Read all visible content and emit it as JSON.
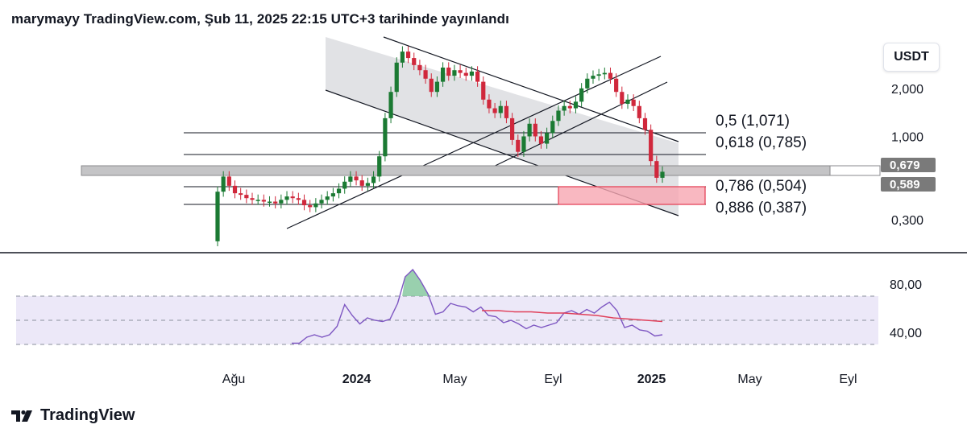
{
  "header": {
    "publisher": "marymayy",
    "site": "TradingView.com",
    "published": "Şub 11, 2025 22:15 UTC+3 tarihinde yayınlandı"
  },
  "unit_label": "USDT",
  "brand": {
    "name": "TradingView",
    "logo_icon": "tradingview-logo-icon"
  },
  "colors": {
    "up": "#1b7a33",
    "down": "#d0283c",
    "channel_fill": "#dcdde0",
    "zone_fill": "#f7a6b2",
    "zone_border": "#e5455a",
    "rsi_band": "#ece8f8",
    "rsi_line": "#7e57c2",
    "rsi_ma": "#e0405a",
    "price_tag": "#7a7a7a"
  },
  "chart_data": [
    {
      "type": "candlestick",
      "title": "",
      "scale": "log",
      "y_tick_labels": [
        "2,000",
        "1,000",
        "0,300"
      ],
      "y_ticks": [
        2.0,
        1.0,
        0.3
      ],
      "ylim": [
        0.2,
        4.5
      ],
      "x_tick_labels": [
        "Ağu",
        "2024",
        "May",
        "Eyl",
        "2025",
        "May",
        "Eyl"
      ],
      "x_ticks": [
        "2023-08",
        "2024-01",
        "2024-05",
        "2024-09",
        "2025-01",
        "2025-05",
        "2025-09"
      ],
      "xlim": [
        "2023-05",
        "2025-11"
      ],
      "interval": "weekly",
      "approx_closes": [
        0.45,
        0.56,
        0.49,
        0.44,
        0.43,
        0.41,
        0.4,
        0.4,
        0.39,
        0.39,
        0.38,
        0.4,
        0.42,
        0.41,
        0.4,
        0.37,
        0.36,
        0.38,
        0.4,
        0.42,
        0.44,
        0.47,
        0.52,
        0.56,
        0.53,
        0.49,
        0.51,
        0.56,
        0.75,
        1.3,
        1.9,
        2.9,
        3.4,
        3.1,
        2.8,
        2.6,
        2.3,
        1.9,
        2.2,
        2.7,
        2.4,
        2.6,
        2.5,
        2.4,
        2.55,
        2.2,
        1.7,
        1.5,
        1.4,
        1.55,
        1.3,
        0.95,
        0.8,
        1.0,
        1.2,
        1.0,
        0.9,
        1.05,
        1.25,
        1.45,
        1.55,
        1.5,
        1.65,
        2.0,
        2.3,
        2.4,
        2.45,
        2.5,
        2.3,
        1.9,
        1.6,
        1.7,
        1.55,
        1.3,
        1.1,
        0.7,
        0.55,
        0.6
      ],
      "fibonacci": [
        {
          "label": "0,5 (1,071)",
          "ratio": 0.5,
          "value": 1.071
        },
        {
          "label": "0,618 (0,785)",
          "ratio": 0.618,
          "value": 0.785
        },
        {
          "label": "0,786 (0,504)",
          "ratio": 0.786,
          "value": 0.504
        },
        {
          "label": "0,886 (0,387)",
          "ratio": 0.886,
          "value": 0.387
        }
      ],
      "price_tags": [
        {
          "label": "0,679",
          "value": 0.679
        },
        {
          "label": "0,589",
          "value": 0.589
        }
      ],
      "annotations": [
        "descending channel",
        "ascending channel",
        "horizontal support band",
        "demand zone"
      ]
    },
    {
      "type": "line",
      "title": "",
      "ylim": [
        25,
        95
      ],
      "y_tick_labels": [
        "80,00",
        "40,00"
      ],
      "y_ticks": [
        80,
        40
      ],
      "band": [
        30,
        70
      ],
      "midline": 50,
      "series": [
        {
          "values": [
            31,
            31,
            36,
            38,
            36,
            38,
            45,
            63,
            54,
            47,
            52,
            50,
            49,
            51,
            64,
            86,
            92,
            83,
            72,
            55,
            57,
            64,
            62,
            61,
            57,
            61,
            54,
            53,
            48,
            50,
            47,
            43,
            46,
            44,
            46,
            48,
            56,
            58,
            55,
            59,
            56,
            61,
            65,
            58,
            44,
            46,
            42,
            41,
            37,
            38
          ]
        },
        {
          "values": [
            58,
            58,
            57,
            57,
            56,
            56,
            55,
            54,
            52,
            51,
            50,
            49
          ]
        }
      ]
    }
  ]
}
